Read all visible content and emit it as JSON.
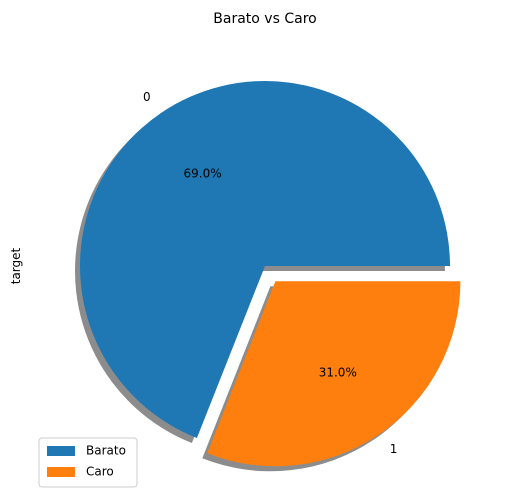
{
  "chart_data": {
    "type": "pie",
    "title": "Barato vs Caro",
    "ylabel": "target",
    "slices": [
      {
        "label": "0",
        "legend": "Barato",
        "value": 69.0,
        "pct_text": "69.0%",
        "color": "#1f77b4",
        "explode": 0.0
      },
      {
        "label": "1",
        "legend": "Caro",
        "value": 31.0,
        "pct_text": "31.0%",
        "color": "#ff7f0e",
        "explode": 0.1
      }
    ],
    "start_angle_deg": 0,
    "shadow": true,
    "legend_position": "lower-left"
  }
}
